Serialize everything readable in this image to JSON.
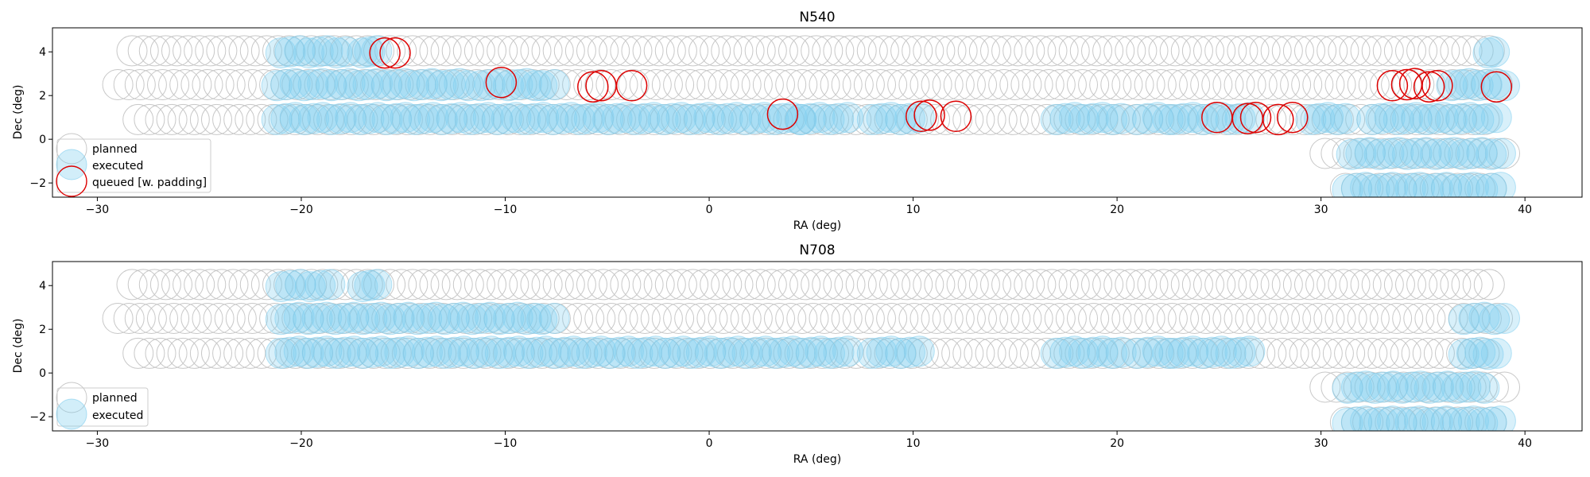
{
  "chart_data": [
    {
      "type": "scatter",
      "title": "N540",
      "xlabel": "RA (deg)",
      "ylabel": "Dec (deg)",
      "xlim": [
        -32.2,
        42.8
      ],
      "ylim": [
        -2.65,
        5.1
      ],
      "xticks": [
        -30,
        -20,
        -10,
        0,
        10,
        20,
        30,
        40
      ],
      "yticks": [
        -2,
        0,
        2,
        4
      ],
      "legend": {
        "position": "lower-left",
        "entries": [
          "planned",
          "executed",
          "queued [w. padding]"
        ]
      },
      "series": [
        {
          "name": "planned",
          "color": "#c8c8c8",
          "rows": [
            {
              "dec": 4.05,
              "ra_start": -28.3,
              "ra_end": 38.4,
              "step": 0.55
            },
            {
              "dec": 2.5,
              "ra_start": -29.0,
              "ra_end": 38.8,
              "step": 0.55
            },
            {
              "dec": 0.9,
              "ra_start": -28.0,
              "ra_end": 38.4,
              "step": 0.55
            },
            {
              "dec": -0.65,
              "ra_start": 30.2,
              "ra_end": 39.0,
              "step": 0.55
            },
            {
              "dec": -2.25,
              "ra_start": 31.2,
              "ra_end": 38.8,
              "step": 0.55
            }
          ]
        },
        {
          "name": "executed",
          "color": "#7fcdee",
          "rows": [
            {
              "dec": 4.0,
              "ra_segments": [
                [
                  -21.0,
                  -17.8
                ],
                [
                  -17.0,
                  -16.3
                ],
                [
                  38.2,
                  38.5
                ]
              ]
            },
            {
              "dec": 2.5,
              "ra_segments": [
                [
                  -21.2,
                  -11.8
                ],
                [
                  -11.2,
                  -8.5
                ],
                [
                  -8.2,
                  -7.6
                ],
                [
                  36.4,
                  39.0
                ]
              ]
            },
            {
              "dec": 0.95,
              "ra_segments": [
                [
                  -21.2,
                  4.5
                ],
                [
                  4.5,
                  6.8
                ],
                [
                  8.0,
                  10.3
                ],
                [
                  17.0,
                  20.2
                ],
                [
                  21.0,
                  22.5
                ],
                [
                  22.8,
                  26.5
                ],
                [
                  29.5,
                  31.2
                ],
                [
                  32.5,
                  38.6
                ]
              ]
            },
            {
              "dec": -0.65,
              "ra_segments": [
                [
                  31.5,
                  38.8
                ]
              ]
            },
            {
              "dec": -2.25,
              "ra_segments": [
                [
                  31.3,
                  38.8
                ]
              ]
            }
          ]
        },
        {
          "name": "queued [w. padding]",
          "color": "#dd0000",
          "points": [
            {
              "x": -15.9,
              "y": 3.95
            },
            {
              "x": -15.4,
              "y": 3.95
            },
            {
              "x": -10.2,
              "y": 2.6
            },
            {
              "x": -5.7,
              "y": 2.4
            },
            {
              "x": -5.3,
              "y": 2.45
            },
            {
              "x": -3.8,
              "y": 2.45
            },
            {
              "x": 3.6,
              "y": 1.15
            },
            {
              "x": 10.4,
              "y": 1.05
            },
            {
              "x": 10.8,
              "y": 1.1
            },
            {
              "x": 12.1,
              "y": 1.05
            },
            {
              "x": 24.9,
              "y": 1.0
            },
            {
              "x": 26.4,
              "y": 0.95
            },
            {
              "x": 26.8,
              "y": 1.0
            },
            {
              "x": 27.9,
              "y": 0.9
            },
            {
              "x": 28.6,
              "y": 1.0
            },
            {
              "x": 33.5,
              "y": 2.45
            },
            {
              "x": 34.2,
              "y": 2.5
            },
            {
              "x": 34.6,
              "y": 2.55
            },
            {
              "x": 35.3,
              "y": 2.4
            },
            {
              "x": 35.7,
              "y": 2.45
            },
            {
              "x": 38.6,
              "y": 2.4
            }
          ]
        }
      ]
    },
    {
      "type": "scatter",
      "title": "N708",
      "xlabel": "RA (deg)",
      "ylabel": "Dec (deg)",
      "xlim": [
        -32.2,
        42.8
      ],
      "ylim": [
        -2.65,
        5.1
      ],
      "xticks": [
        -30,
        -20,
        -10,
        0,
        10,
        20,
        30,
        40
      ],
      "yticks": [
        -2,
        0,
        2,
        4
      ],
      "legend": {
        "position": "lower-left",
        "entries": [
          "planned",
          "executed"
        ]
      },
      "series": [
        {
          "name": "planned",
          "color": "#c8c8c8",
          "rows": [
            {
              "dec": 4.05,
              "ra_start": -28.3,
              "ra_end": 38.4,
              "step": 0.55
            },
            {
              "dec": 2.5,
              "ra_start": -29.0,
              "ra_end": 38.8,
              "step": 0.55
            },
            {
              "dec": 0.9,
              "ra_start": -28.0,
              "ra_end": 38.4,
              "step": 0.55
            },
            {
              "dec": -0.65,
              "ra_start": 30.2,
              "ra_end": 39.0,
              "step": 0.55
            },
            {
              "dec": -2.25,
              "ra_start": 31.2,
              "ra_end": 38.8,
              "step": 0.55
            }
          ]
        },
        {
          "name": "executed",
          "color": "#7fcdee",
          "rows": [
            {
              "dec": 4.0,
              "ra_segments": [
                [
                  -21.0,
                  -18.6
                ],
                [
                  -17.0,
                  -16.3
                ]
              ]
            },
            {
              "dec": 2.5,
              "ra_segments": [
                [
                  -21.0,
                  -8.5
                ],
                [
                  -8.2,
                  -7.6
                ],
                [
                  37.0,
                  39.0
                ]
              ]
            },
            {
              "dec": 0.95,
              "ra_segments": [
                [
                  -21.0,
                  6.8
                ],
                [
                  8.0,
                  10.3
                ],
                [
                  17.0,
                  20.2
                ],
                [
                  21.0,
                  22.5
                ],
                [
                  22.8,
                  26.5
                ]
              ]
            },
            {
              "dec": 0.9,
              "ra_segments": [
                [
                  37.0,
                  38.6
                ]
              ]
            },
            {
              "dec": -0.65,
              "ra_segments": [
                [
                  31.3,
                  38.0
                ]
              ]
            },
            {
              "dec": -2.25,
              "ra_segments": [
                [
                  31.3,
                  38.8
                ]
              ]
            }
          ]
        }
      ]
    }
  ]
}
